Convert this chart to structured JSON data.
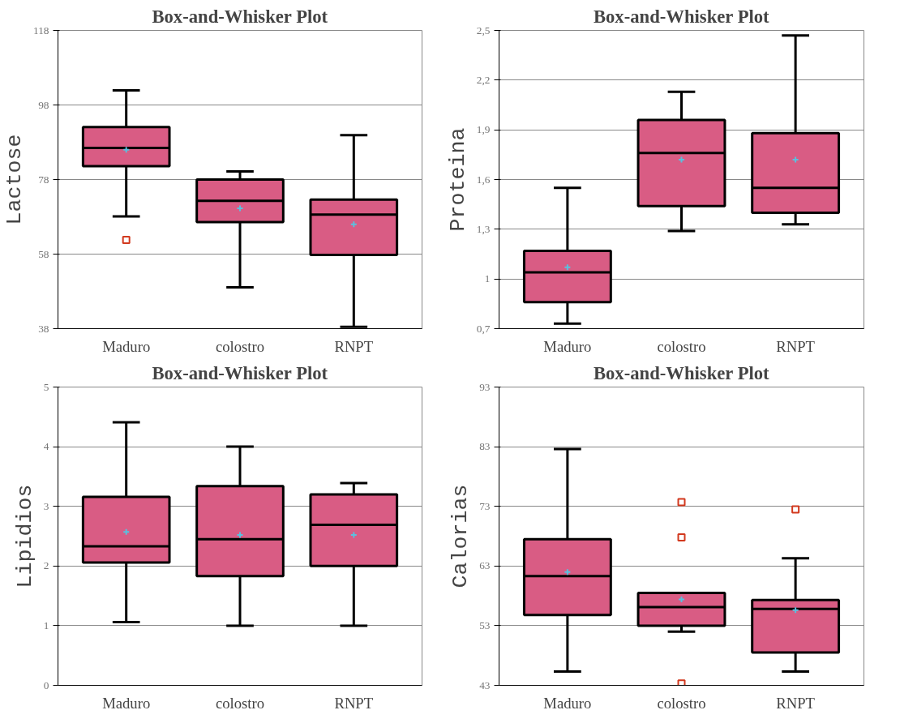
{
  "chart_data": [
    {
      "type": "box",
      "title": "Box-and-Whisker Plot",
      "ylabel": "Lactose",
      "categories": [
        "Maduro",
        "colostro",
        "RNPT"
      ],
      "ylim": [
        38,
        118
      ],
      "yticks": [
        38,
        58,
        78,
        98,
        118
      ],
      "grid": "y",
      "series": [
        {
          "color": "#d95c84",
          "boxes": [
            {
              "low": 68.1,
              "q1": 81.6,
              "median": 86.5,
              "q3": 92.1,
              "high": 101.9,
              "mean": 86,
              "outliers": [
                61.8
              ]
            },
            {
              "low": 49.1,
              "q1": 66.6,
              "median": 72.3,
              "q3": 78,
              "high": 80.2,
              "mean": 70.3
            },
            {
              "low": 38.5,
              "q1": 57.8,
              "median": 68.6,
              "q3": 72.6,
              "high": 89.9,
              "mean": 66
            }
          ]
        }
      ]
    },
    {
      "type": "box",
      "title": "Box-and-Whisker Plot",
      "ylabel": "Proteina",
      "categories": [
        "Maduro",
        "colostro",
        "RNPT"
      ],
      "ylim": [
        0.7,
        2.5
      ],
      "yticks": [
        {
          "value": 0.7,
          "label": "0,7"
        },
        1,
        {
          "value": 1.3,
          "label": "1,3"
        },
        {
          "value": 1.6,
          "label": "1,6"
        },
        {
          "value": 1.9,
          "label": "1,9"
        },
        {
          "value": 2.2,
          "label": "2,2"
        },
        {
          "value": 2.5,
          "label": "2,5"
        }
      ],
      "grid": "y",
      "series": [
        {
          "color": "#d95c84",
          "boxes": [
            {
              "low": 0.73,
              "q1": 0.86,
              "median": 1.04,
              "q3": 1.17,
              "high": 1.55,
              "mean": 1.07
            },
            {
              "low": 1.29,
              "q1": 1.44,
              "median": 1.76,
              "q3": 1.96,
              "high": 2.13,
              "mean": 1.72
            },
            {
              "low": 1.33,
              "q1": 1.4,
              "median": 1.55,
              "q3": 1.88,
              "high": 2.47,
              "mean": 1.72
            }
          ]
        }
      ]
    },
    {
      "type": "box",
      "title": "Box-and-Whisker Plot",
      "ylabel": "Lipidios",
      "categories": [
        "Maduro",
        "colostro",
        "RNPT"
      ],
      "ylim": [
        0,
        5
      ],
      "yticks": [
        0,
        1,
        2,
        3,
        4,
        5
      ],
      "grid": "y",
      "series": [
        {
          "color": "#d95c84",
          "boxes": [
            {
              "low": 1.06,
              "q1": 2.06,
              "median": 2.33,
              "q3": 3.16,
              "high": 4.41,
              "mean": 2.57
            },
            {
              "low": 1.0,
              "q1": 1.83,
              "median": 2.45,
              "q3": 3.34,
              "high": 4.0,
              "mean": 2.52
            },
            {
              "low": 1.0,
              "q1": 2.0,
              "median": 2.69,
              "q3": 3.2,
              "high": 3.39,
              "mean": 2.52
            }
          ]
        }
      ]
    },
    {
      "type": "box",
      "title": "Box-and-Whisker Plot",
      "ylabel": "Calorias",
      "categories": [
        "Maduro",
        "colostro",
        "RNPT"
      ],
      "ylim": [
        43,
        93
      ],
      "yticks": [
        43,
        53,
        63,
        73,
        83,
        93
      ],
      "grid": "y",
      "series": [
        {
          "color": "#d95c84",
          "boxes": [
            {
              "low": 45.3,
              "q1": 54.8,
              "median": 61.3,
              "q3": 67.5,
              "high": 82.6,
              "mean": 62
            },
            {
              "low": 52,
              "q1": 53,
              "median": 56.1,
              "q3": 58.5,
              "high": 58.5,
              "mean": 57.4,
              "outliers": [
                73.7,
                67.8,
                43.3
              ]
            },
            {
              "low": 45.3,
              "q1": 48.5,
              "median": 55.8,
              "q3": 57.3,
              "high": 64.3,
              "mean": 55.6,
              "outliers": [
                72.5
              ]
            }
          ]
        }
      ]
    }
  ]
}
